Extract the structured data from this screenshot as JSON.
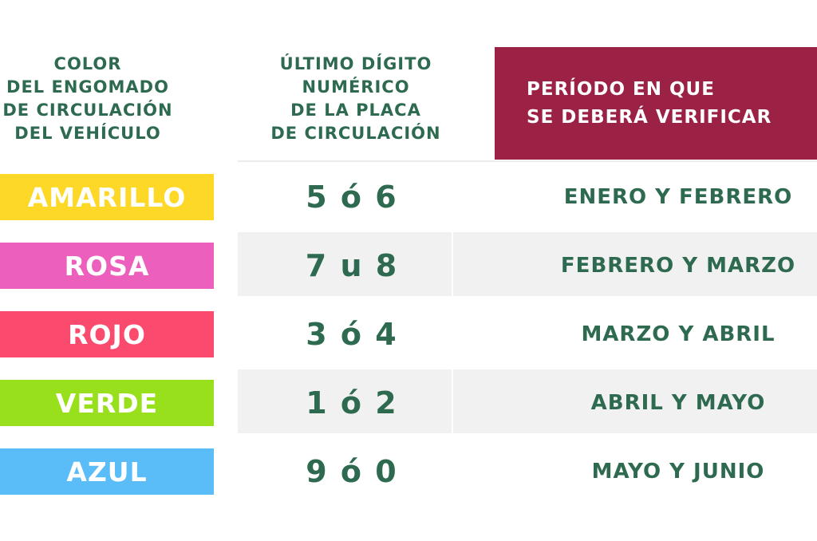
{
  "headers": {
    "color_col": [
      "COLOR",
      "DEL ENGOMADO",
      "DE CIRCULACIÓN",
      "DEL VEHÍCULO"
    ],
    "digit_col": [
      "ÚLTIMO DÍGITO",
      "NUMÉRICO",
      "DE LA PLACA",
      "DE CIRCULACIÓN"
    ],
    "period_col": [
      "PERÍODO EN QUE",
      "SE DEBERÁ VERIFICAR"
    ]
  },
  "colors": {
    "header_text": "#2e6a4f",
    "header_box": "#9b2245"
  },
  "rows": [
    {
      "color_name": "AMARILLO",
      "color_hex": "#fdd826",
      "digits": "5 ó 6",
      "period": "ENERO Y FEBRERO"
    },
    {
      "color_name": "ROSA",
      "color_hex": "#ec5fbd",
      "digits": "7 u 8",
      "period": "FEBRERO Y MARZO"
    },
    {
      "color_name": "ROJO",
      "color_hex": "#fa4a6d",
      "digits": "3 ó 4",
      "period": "MARZO Y ABRIL"
    },
    {
      "color_name": "VERDE",
      "color_hex": "#99e01c",
      "digits": "1 ó 2",
      "period": "ABRIL Y MAYO"
    },
    {
      "color_name": "AZUL",
      "color_hex": "#5abdf8",
      "digits": "9 ó 0",
      "period": "MAYO Y JUNIO"
    }
  ]
}
